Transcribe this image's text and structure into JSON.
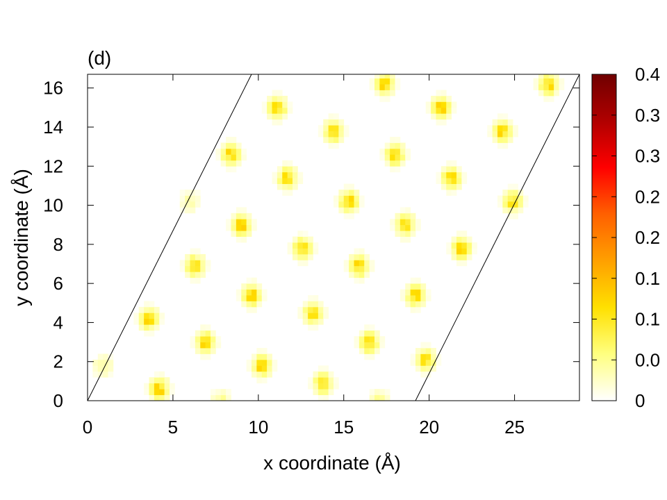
{
  "chart_data": {
    "type": "heatmap",
    "panel_label": "(d)",
    "xlabel": "x coordinate (Å)",
    "ylabel": "y coordinate (Å)",
    "xlim": [
      0,
      28.8
    ],
    "ylim": [
      0,
      16.7
    ],
    "x_ticks": [
      0,
      5,
      10,
      15,
      20,
      25
    ],
    "y_ticks": [
      0,
      2,
      4,
      6,
      8,
      10,
      12,
      14,
      16
    ],
    "colorbar": {
      "range": [
        0,
        0.4
      ],
      "tick_values": [
        0,
        0.05,
        0.1,
        0.15,
        0.2,
        0.25,
        0.3,
        0.35,
        0.4
      ],
      "tick_labels": [
        "0",
        "0.0",
        "0.1",
        "0.1",
        "0.2",
        "0.2",
        "0.3",
        "0.3",
        "0.4"
      ],
      "colors": [
        "#ffffff",
        "#ffff80",
        "#ffe000",
        "#ffa000",
        "#ff6000",
        "#ff0000",
        "#b00000",
        "#700000"
      ]
    },
    "cell_boundary": [
      [
        [
          0,
          0
        ],
        [
          9.6,
          16.7
        ]
      ],
      [
        [
          19.2,
          0
        ],
        [
          28.8,
          16.7
        ]
      ]
    ],
    "grid_on": false,
    "points": [
      {
        "x": 4.2,
        "y": 0.7,
        "v": 0.12
      },
      {
        "x": 7.8,
        "y": 0.0,
        "v": 0.05
      },
      {
        "x": 10.3,
        "y": 1.9,
        "v": 0.12
      },
      {
        "x": 13.8,
        "y": 0.9,
        "v": 0.11
      },
      {
        "x": 17.2,
        "y": 0.0,
        "v": 0.05
      },
      {
        "x": 19.8,
        "y": 2.0,
        "v": 0.11
      },
      {
        "x": 1.0,
        "y": 1.7,
        "v": 0.05
      },
      {
        "x": 3.5,
        "y": 4.3,
        "v": 0.12
      },
      {
        "x": 6.9,
        "y": 3.1,
        "v": 0.12
      },
      {
        "x": 9.6,
        "y": 5.5,
        "v": 0.12
      },
      {
        "x": 13.1,
        "y": 4.4,
        "v": 0.12
      },
      {
        "x": 16.4,
        "y": 3.1,
        "v": 0.12
      },
      {
        "x": 19.3,
        "y": 5.5,
        "v": 0.12
      },
      {
        "x": 6.3,
        "y": 6.8,
        "v": 0.12
      },
      {
        "x": 9.0,
        "y": 9.0,
        "v": 0.13
      },
      {
        "x": 12.5,
        "y": 7.9,
        "v": 0.12
      },
      {
        "x": 15.9,
        "y": 6.8,
        "v": 0.12
      },
      {
        "x": 18.6,
        "y": 9.1,
        "v": 0.12
      },
      {
        "x": 22.0,
        "y": 7.9,
        "v": 0.12
      },
      {
        "x": 5.9,
        "y": 10.1,
        "v": 0.04
      },
      {
        "x": 8.3,
        "y": 12.7,
        "v": 0.12
      },
      {
        "x": 11.6,
        "y": 11.5,
        "v": 0.12
      },
      {
        "x": 15.2,
        "y": 10.3,
        "v": 0.12
      },
      {
        "x": 18.0,
        "y": 12.7,
        "v": 0.12
      },
      {
        "x": 21.4,
        "y": 11.5,
        "v": 0.12
      },
      {
        "x": 24.8,
        "y": 10.3,
        "v": 0.11
      },
      {
        "x": 11.0,
        "y": 15.0,
        "v": 0.12
      },
      {
        "x": 14.5,
        "y": 13.9,
        "v": 0.12
      },
      {
        "x": 17.3,
        "y": 16.2,
        "v": 0.12
      },
      {
        "x": 20.8,
        "y": 15.0,
        "v": 0.12
      },
      {
        "x": 24.3,
        "y": 13.9,
        "v": 0.12
      },
      {
        "x": 27.0,
        "y": 16.2,
        "v": 0.12
      }
    ]
  }
}
